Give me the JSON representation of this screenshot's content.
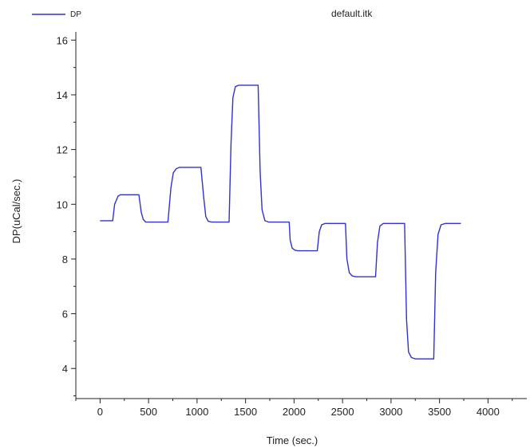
{
  "chart_data": {
    "type": "line",
    "title": "default.itk",
    "xlabel": "Time (sec.)",
    "ylabel": "DP(uCal/sec.)",
    "xlim": [
      -250,
      4400
    ],
    "ylim": [
      2.9,
      16.3
    ],
    "x_ticks": [
      0,
      500,
      1000,
      1500,
      2000,
      2500,
      3000,
      3500,
      4000
    ],
    "x_tick_labels": [
      "0",
      "500",
      "1000",
      "1500",
      "2000",
      "2500",
      "3000",
      "3500",
      "4000"
    ],
    "y_ticks": [
      4,
      6,
      8,
      10,
      12,
      14,
      16
    ],
    "y_tick_labels": [
      "4",
      "6",
      "8",
      "10",
      "12",
      "14",
      "16"
    ],
    "grid": false,
    "legend_position": "top-left",
    "line_color": "#3232cc",
    "series": [
      {
        "name": "DP",
        "x": [
          0,
          130,
          150,
          185,
          210,
          400,
          425,
          445,
          470,
          500,
          700,
          730,
          755,
          785,
          820,
          1040,
          1070,
          1090,
          1115,
          1150,
          1330,
          1350,
          1370,
          1395,
          1430,
          1630,
          1650,
          1670,
          1700,
          1740,
          1950,
          1960,
          1980,
          2010,
          2040,
          2240,
          2260,
          2285,
          2320,
          2530,
          2545,
          2570,
          2600,
          2640,
          2840,
          2860,
          2885,
          2920,
          3140,
          3160,
          3180,
          3210,
          3250,
          3440,
          3460,
          3485,
          3515,
          3560,
          3720
        ],
        "y": [
          9.4,
          9.4,
          10.0,
          10.3,
          10.35,
          10.35,
          9.7,
          9.45,
          9.35,
          9.35,
          9.35,
          10.6,
          11.15,
          11.3,
          11.35,
          11.35,
          10.2,
          9.55,
          9.38,
          9.35,
          9.35,
          12.2,
          13.9,
          14.3,
          14.35,
          14.35,
          11.2,
          9.8,
          9.4,
          9.35,
          9.35,
          8.7,
          8.4,
          8.32,
          8.3,
          8.3,
          9.0,
          9.25,
          9.3,
          9.3,
          8.0,
          7.5,
          7.38,
          7.35,
          7.35,
          8.6,
          9.2,
          9.3,
          9.3,
          5.8,
          4.6,
          4.4,
          4.35,
          4.35,
          7.5,
          8.9,
          9.25,
          9.3,
          9.3
        ]
      }
    ]
  }
}
